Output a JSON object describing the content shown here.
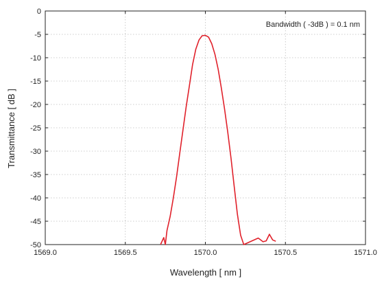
{
  "chart_data": {
    "type": "line",
    "title": "",
    "xlabel": "Wavelength [ nm ]",
    "ylabel": "Transmittance [ dB ]",
    "annotation": "Bandwidth ( -3dB ) = 0.1 nm",
    "xlim": [
      1569.0,
      1571.0
    ],
    "ylim": [
      -50,
      0
    ],
    "x_ticks": [
      "1569.0",
      "1569.5",
      "1570.0",
      "1570.5",
      "1571.0"
    ],
    "y_ticks": [
      "0",
      "-5",
      "-10",
      "-15",
      "-20",
      "-25",
      "-30",
      "-35",
      "-40",
      "-45",
      "-50"
    ],
    "grid": true,
    "line_color": "#e0202a",
    "series": [
      {
        "x": [
          1569.72,
          1569.74,
          1569.75,
          1569.76,
          1569.78,
          1569.8,
          1569.82,
          1569.84,
          1569.86,
          1569.88,
          1569.9,
          1569.92,
          1569.94,
          1569.96,
          1569.98,
          1570.0,
          1570.02,
          1570.04,
          1570.06,
          1570.08,
          1570.1,
          1570.12,
          1570.14,
          1570.16,
          1570.18,
          1570.2,
          1570.22,
          1570.24,
          1570.33,
          1570.36,
          1570.38,
          1570.4,
          1570.42,
          1570.44
        ],
        "y": [
          -50,
          -48.5,
          -50,
          -47,
          -44,
          -40,
          -35.5,
          -30.5,
          -25.5,
          -20.5,
          -16,
          -11.5,
          -8.2,
          -6.2,
          -5.3,
          -5.2,
          -5.6,
          -7,
          -9.3,
          -12.5,
          -16.5,
          -21,
          -26,
          -31.5,
          -37.5,
          -43.5,
          -48,
          -50,
          -48.6,
          -49.4,
          -49.2,
          -47.8,
          -49.0,
          -49.3
        ]
      }
    ]
  }
}
